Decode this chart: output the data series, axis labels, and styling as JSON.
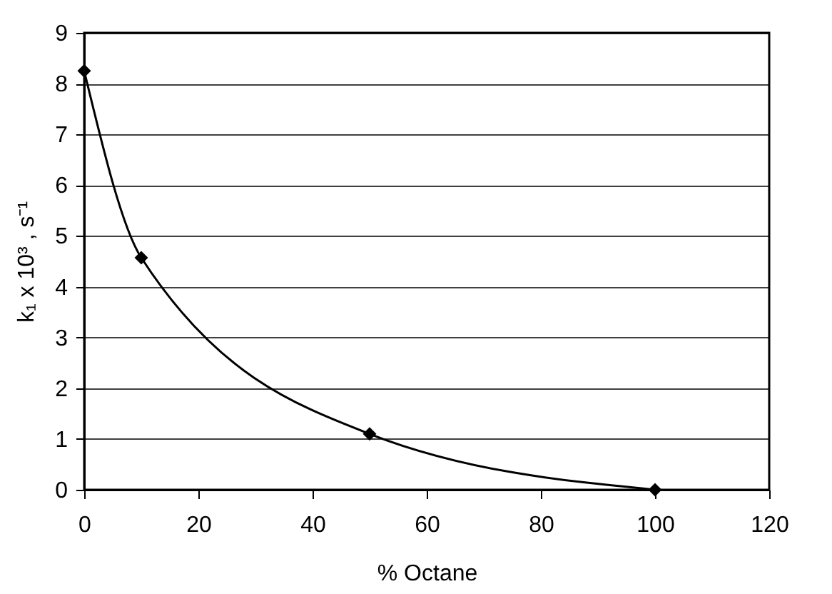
{
  "chart_data": {
    "type": "line",
    "xlabel": "% Octane",
    "ylabel": "k₁ x 10³ , s⁻¹",
    "x": [
      0,
      10,
      50,
      100
    ],
    "series": [
      {
        "color": "#000000",
        "values": [
          8.25,
          4.57,
          1.1,
          0
        ]
      }
    ],
    "xlim": [
      0,
      120
    ],
    "xticks": [
      0,
      20,
      40,
      60,
      80,
      100,
      120
    ],
    "ylim": [
      0,
      9
    ],
    "yticks": [
      0,
      1,
      2,
      3,
      4,
      5,
      6,
      7,
      8,
      9
    ],
    "grid": "y",
    "marker": "diamond",
    "line_style": "solid",
    "legend": false
  }
}
